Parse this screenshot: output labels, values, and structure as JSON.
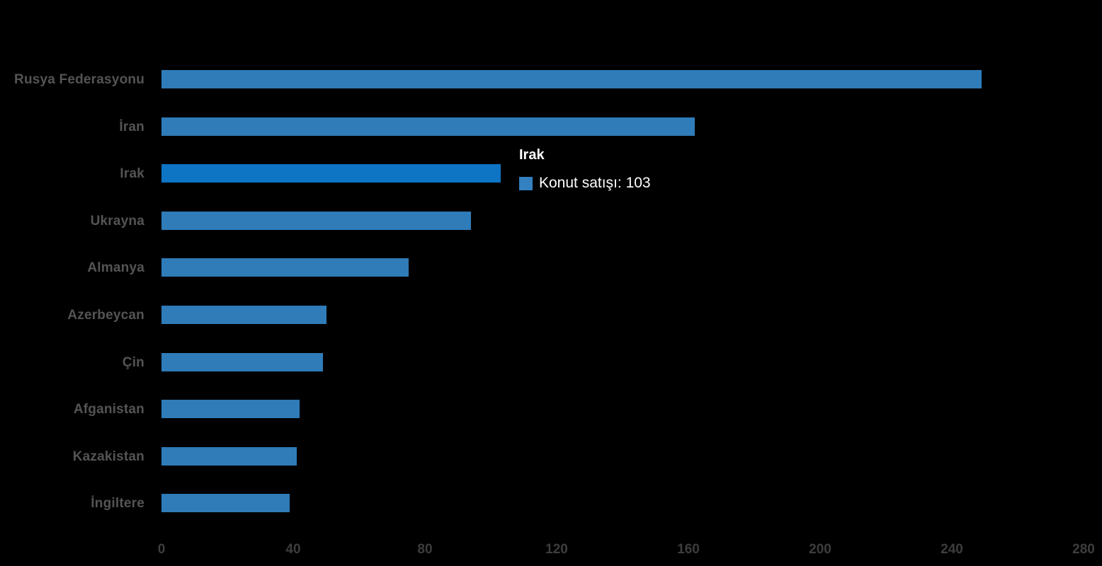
{
  "background_color": "#000000",
  "chart_data": {
    "type": "bar",
    "orientation": "horizontal",
    "title": "",
    "xlabel": "",
    "ylabel": "",
    "categories": [
      "Rusya Federasyonu",
      "İran",
      "Irak",
      "Ukrayna",
      "Almanya",
      "Azerbeycan",
      "Çin",
      "Afganistan",
      "Kazakistan",
      "İngiltere"
    ],
    "series": [
      {
        "name": "Konut satışı",
        "values": [
          249,
          162,
          103,
          94,
          75,
          50,
          49,
          42,
          41,
          39
        ]
      }
    ],
    "highlighted_category": "Irak",
    "xlim": [
      0,
      280
    ],
    "x_ticks": [
      0,
      40,
      80,
      120,
      160,
      200,
      240,
      280
    ],
    "grid": false,
    "legend_position": "none",
    "colors": {
      "bar": "#2F7CB9",
      "bar_highlight": "#0E74C4",
      "category_label": "#545454",
      "axis_label": "#3D3D3D"
    }
  },
  "tooltip": {
    "title": "Irak",
    "series_label": "Konut satışı",
    "value": "103",
    "text": "Konut satışı: 103",
    "swatch_color": "#3381C1",
    "text_color": "#FFFFFF"
  }
}
